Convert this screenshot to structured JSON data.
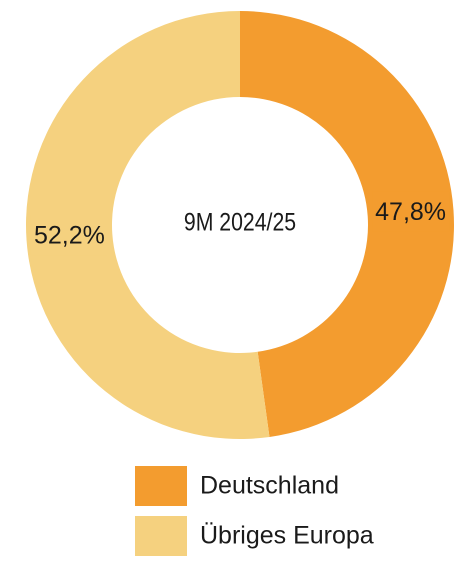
{
  "chart_data": {
    "type": "donut",
    "center_label": "9M 2024/25",
    "categories": [
      "Deutschland",
      "Übriges Europa"
    ],
    "values": [
      47.8,
      52.2
    ],
    "value_labels": [
      "47,8%",
      "52,2%"
    ],
    "colors": [
      "#f39c2f",
      "#f5d17f"
    ],
    "legend": "bottom"
  }
}
